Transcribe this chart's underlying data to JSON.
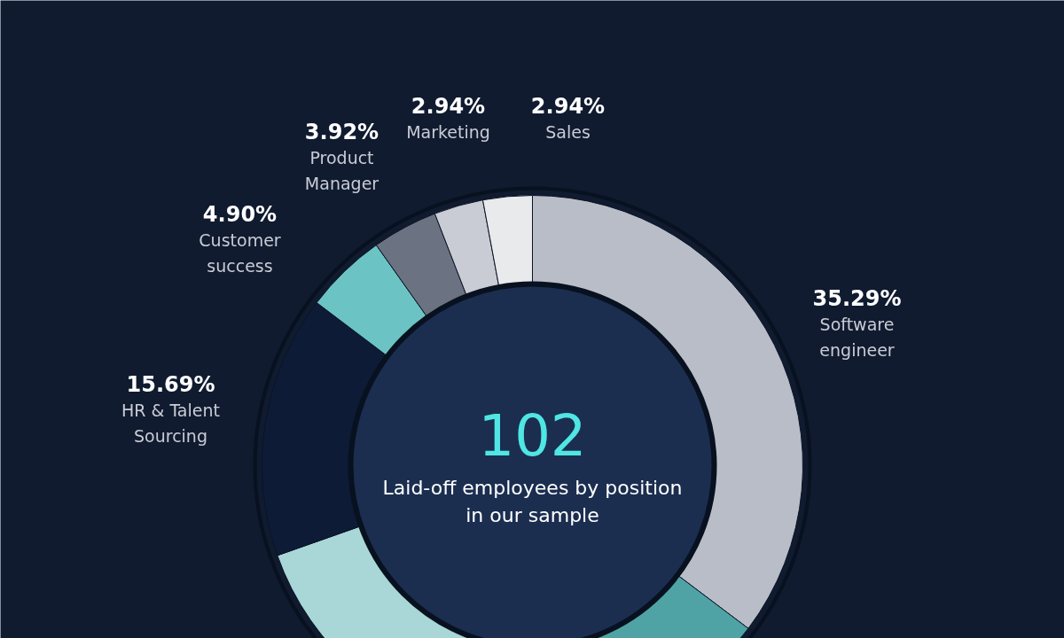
{
  "chart_data": {
    "type": "donut",
    "categories": [
      "Software engineer",
      null,
      null,
      "HR & Talent Sourcing",
      "Customer success",
      "Product Manager",
      "Marketing",
      "Sales"
    ],
    "values": [
      35.29,
      17.16,
      17.16,
      15.69,
      4.9,
      3.92,
      2.94,
      2.94
    ],
    "value_labels": [
      "35.29%",
      null,
      null,
      "15.69%",
      "4.90%",
      "3.92%",
      "2.94%",
      "2.94%"
    ],
    "colors": [
      "#b9bdc7",
      "#4fa3a5",
      "#a9d6d6",
      "#0d1b36",
      "#6cc3c3",
      "#6b7281",
      "#c9ccd4",
      "#e9eaec"
    ],
    "annotations": [
      "102",
      "Laid-off employees by position in our sample"
    ]
  }
}
